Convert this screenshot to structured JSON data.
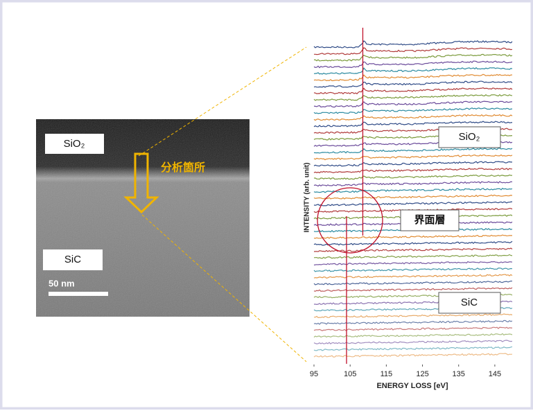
{
  "tem_image": {
    "top_label": "SiO₂",
    "bottom_label": "SiC",
    "scale_bar": "50 nm",
    "arrow_label": "分析箇所"
  },
  "spectra": {
    "xlabel": "ENERGY LOSS [eV]",
    "ylabel": "INTENSITY (arb. unit)",
    "xlim": [
      95,
      150
    ],
    "xticks": [
      95,
      105,
      115,
      125,
      135,
      145
    ],
    "edge_markers": [
      108.5,
      104
    ],
    "region_labels": {
      "top": "SiO₂",
      "middle": "界面層",
      "bottom": "SiC"
    }
  }
}
